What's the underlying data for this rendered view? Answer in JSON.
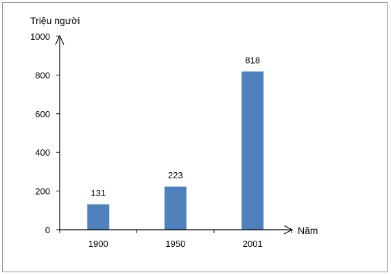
{
  "chart_data": {
    "type": "bar",
    "categories": [
      "1900",
      "1950",
      "2001"
    ],
    "values": [
      131,
      223,
      818
    ],
    "data_labels": [
      "131",
      "223",
      "818"
    ],
    "ylabel": "Triệu người",
    "xlabel": "Năm",
    "ylim": [
      0,
      1000
    ],
    "yticks": [
      0,
      200,
      400,
      600,
      800,
      1000
    ],
    "ytick_labels": [
      "0",
      "200",
      "400",
      "600",
      "800",
      "1000"
    ],
    "grid": false,
    "legend": "none",
    "bar_color": "#4f81bd"
  }
}
